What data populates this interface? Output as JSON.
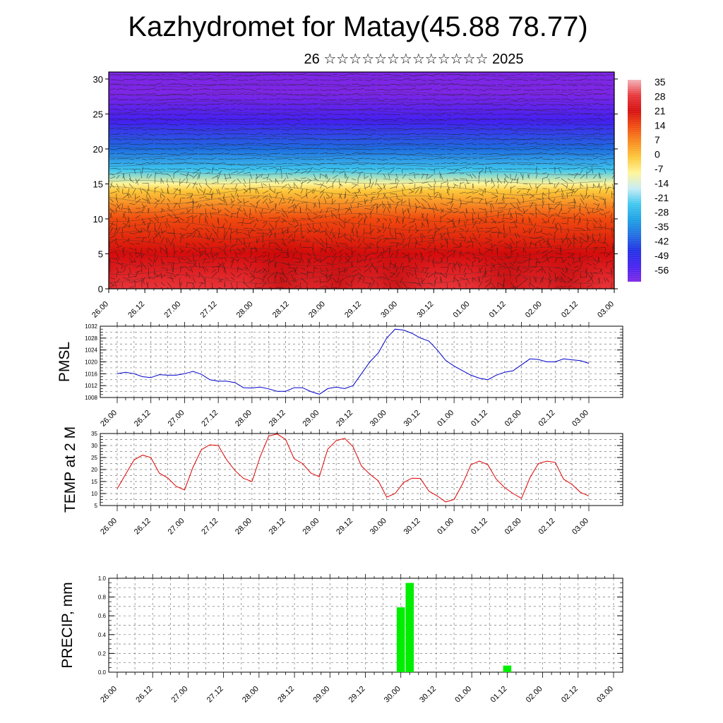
{
  "title": "Kazhydromet for Matay(45.88 78.77)",
  "subtitle": "26 ☆☆☆☆☆☆☆☆☆☆☆☆☆ 2025",
  "chart_data": [
    {
      "type": "heatmap",
      "title": "",
      "xlabel": "",
      "ylabel": "",
      "x_ticks": [
        "26.00",
        "26.12",
        "27.00",
        "27.12",
        "28.00",
        "28.12",
        "29.00",
        "29.12",
        "30.00",
        "30.12",
        "01.00",
        "01.12",
        "02.00",
        "02.12",
        "03.00"
      ],
      "y_ticks": [
        0,
        5,
        10,
        15,
        20,
        25,
        30
      ],
      "ylim": [
        0,
        31
      ],
      "colorbar_labels": [
        35,
        28,
        21,
        14,
        7,
        0,
        -7,
        -14,
        -21,
        -28,
        -35,
        -42,
        -49,
        -56
      ],
      "colorbar_colors": [
        "#f2b3b8",
        "#e8353a",
        "#d50c0c",
        "#f04a0e",
        "#f98a1b",
        "#fcc83a",
        "#fff59a",
        "#c7ecf4",
        "#3fc7ef",
        "#1ba0e4",
        "#1e6de0",
        "#1f2ee6",
        "#4420f0",
        "#7d26e6"
      ],
      "temperature_profile": [
        {
          "height": 0,
          "value": 30
        },
        {
          "height": 5,
          "value": 24
        },
        {
          "height": 10,
          "value": 12
        },
        {
          "height": 14,
          "value": 2
        },
        {
          "height": 15,
          "value": -8
        },
        {
          "height": 17,
          "value": -20
        },
        {
          "height": 20,
          "value": -35
        },
        {
          "height": 24,
          "value": -48
        },
        {
          "height": 28,
          "value": -56
        },
        {
          "height": 31,
          "value": -58
        }
      ],
      "wind_field": true
    },
    {
      "type": "line",
      "ylabel": "PMSL",
      "ylim": [
        1008,
        1032
      ],
      "y_ticks": [
        1008,
        1012,
        1016,
        1020,
        1024,
        1028,
        1032
      ],
      "x_ticks": [
        "26.00",
        "26.12",
        "27.00",
        "27.12",
        "28.00",
        "28.12",
        "29.00",
        "29.12",
        "30.00",
        "30.12",
        "01.00",
        "01.12",
        "02.00",
        "02.12",
        "03.00"
      ],
      "color": "#0000cc",
      "x": [
        0,
        3,
        6,
        9,
        12,
        15,
        18,
        21,
        24,
        27,
        30,
        33,
        36,
        39,
        42,
        45,
        48,
        51,
        54,
        57,
        60,
        63,
        66,
        69,
        72,
        75,
        78,
        81,
        84,
        87,
        90,
        93,
        96,
        99,
        102,
        105,
        108,
        111,
        114,
        117,
        120,
        123,
        126,
        129,
        132,
        135,
        138,
        141,
        144,
        147,
        150,
        153,
        156,
        159,
        162,
        165,
        168
      ],
      "values": [
        1016,
        1016.5,
        1016,
        1015,
        1014.7,
        1015.7,
        1015.5,
        1015.5,
        1016,
        1016.8,
        1015.8,
        1014,
        1013.5,
        1013.5,
        1013,
        1011.3,
        1011.2,
        1011.5,
        1010.9,
        1010.1,
        1010.1,
        1011.3,
        1011.3,
        1010,
        1009.1,
        1011,
        1011.5,
        1011,
        1012,
        1016,
        1020,
        1023,
        1028,
        1031,
        1030.7,
        1029.6,
        1028,
        1027,
        1024,
        1020.5,
        1018.6,
        1017,
        1015.5,
        1014.5,
        1014,
        1015.5,
        1016.5,
        1017,
        1019,
        1021,
        1020.8,
        1020,
        1020,
        1021,
        1020.7,
        1020.4,
        1019.5
      ]
    },
    {
      "type": "line",
      "ylabel": "TEMP at 2 M",
      "ylim": [
        5,
        35
      ],
      "y_ticks": [
        5,
        10,
        15,
        20,
        25,
        30,
        35
      ],
      "x_ticks": [
        "26.00",
        "26.12",
        "27.00",
        "27.12",
        "28.00",
        "28.12",
        "29.00",
        "29.12",
        "30.00",
        "30.12",
        "01.00",
        "01.12",
        "02.00",
        "02.12",
        "03.00"
      ],
      "color": "#e00000",
      "x": [
        0,
        3,
        6,
        9,
        12,
        15,
        18,
        21,
        24,
        27,
        30,
        33,
        36,
        39,
        42,
        45,
        48,
        51,
        54,
        57,
        60,
        63,
        66,
        69,
        72,
        75,
        78,
        81,
        84,
        87,
        90,
        93,
        96,
        99,
        102,
        105,
        108,
        111,
        114,
        117,
        120,
        123,
        126,
        129,
        132,
        135,
        138,
        141,
        144,
        147,
        150,
        153,
        156,
        159,
        162,
        165,
        168
      ],
      "values": [
        12,
        18,
        24,
        26,
        25,
        18.5,
        16.5,
        13,
        11.5,
        21,
        28.3,
        30.3,
        30,
        24,
        19.5,
        16.3,
        15,
        25.6,
        34,
        34.8,
        32.5,
        24.5,
        22.5,
        18.5,
        17,
        28.5,
        32,
        33,
        29.5,
        21.5,
        18,
        15.3,
        8.5,
        10,
        14.6,
        16.4,
        16.3,
        11,
        9,
        6.5,
        7.5,
        14,
        22,
        23.5,
        22,
        16,
        12.5,
        10,
        8,
        16.5,
        22.5,
        23.5,
        23,
        16,
        13.8,
        10.5,
        9
      ]
    },
    {
      "type": "bar",
      "ylabel": "PRECIP, mm",
      "ylim": [
        0,
        1.0
      ],
      "y_ticks": [
        "0.0",
        "0.2",
        "0.4",
        "0.6",
        "0.8",
        "1.0"
      ],
      "x_ticks": [
        "26.00",
        "26.12",
        "27.00",
        "27.12",
        "28.00",
        "28.12",
        "29.00",
        "29.12",
        "30.00",
        "30.12",
        "01.00",
        "01.12",
        "02.00",
        "02.12",
        "03.00"
      ],
      "color": "#00ee00",
      "bars": [
        {
          "x": 96,
          "value": 0.69
        },
        {
          "x": 99,
          "value": 0.95
        },
        {
          "x": 132,
          "value": 0.07
        }
      ]
    }
  ]
}
